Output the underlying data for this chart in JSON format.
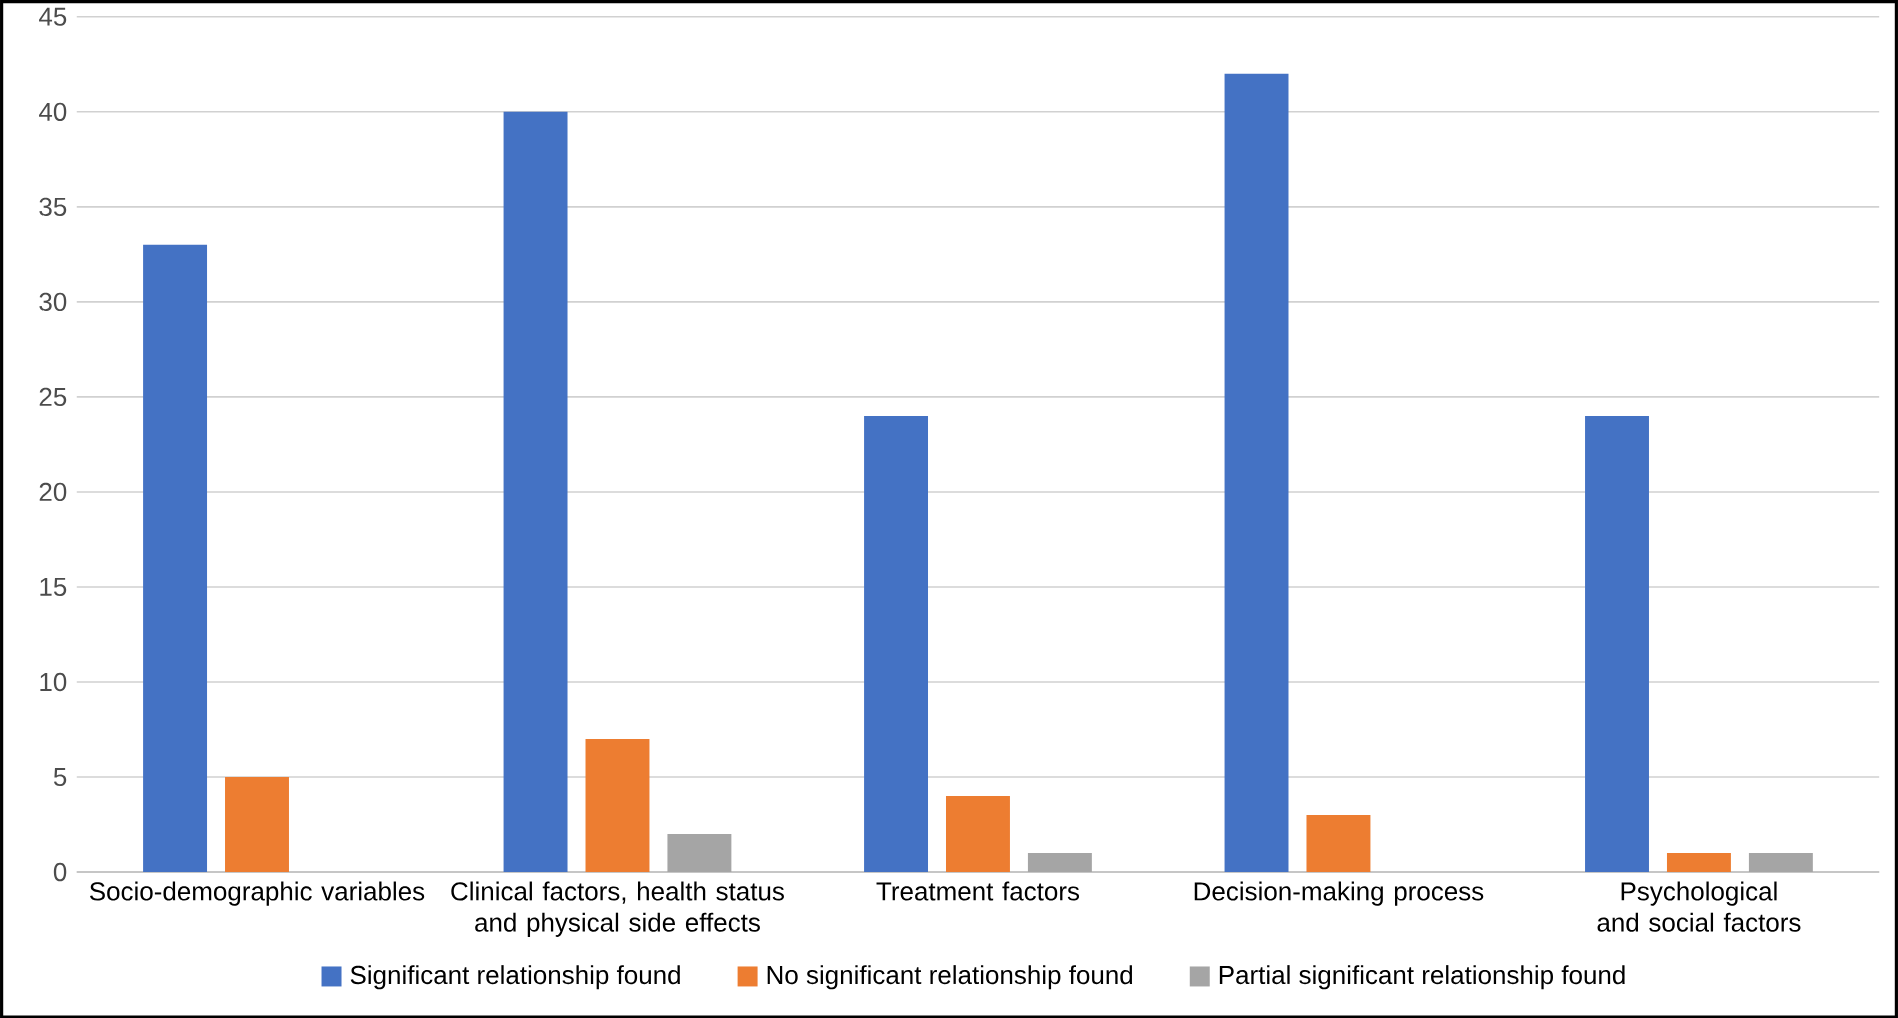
{
  "chart_data": {
    "type": "bar",
    "categories": [
      "Socio-demographic variables",
      "Clinical factors, health status and physical side effects",
      "Treatment factors",
      "Decision-making process",
      "Psychological and social factors"
    ],
    "series": [
      {
        "name": "Significant relationship found",
        "color": "#4472c4",
        "values": [
          33,
          40,
          24,
          42,
          24
        ]
      },
      {
        "name": "No significant relationship found",
        "color": "#ed7d31",
        "values": [
          5,
          7,
          4,
          3,
          1
        ]
      },
      {
        "name": "Partial significant relationship found",
        "color": "#a5a5a5",
        "values": [
          null,
          2,
          1,
          null,
          1
        ]
      }
    ],
    "ylim": [
      0,
      45
    ],
    "yticks": [
      0,
      5,
      10,
      15,
      20,
      25,
      30,
      35,
      40,
      45
    ],
    "grid": "y",
    "legend": "bottom"
  }
}
